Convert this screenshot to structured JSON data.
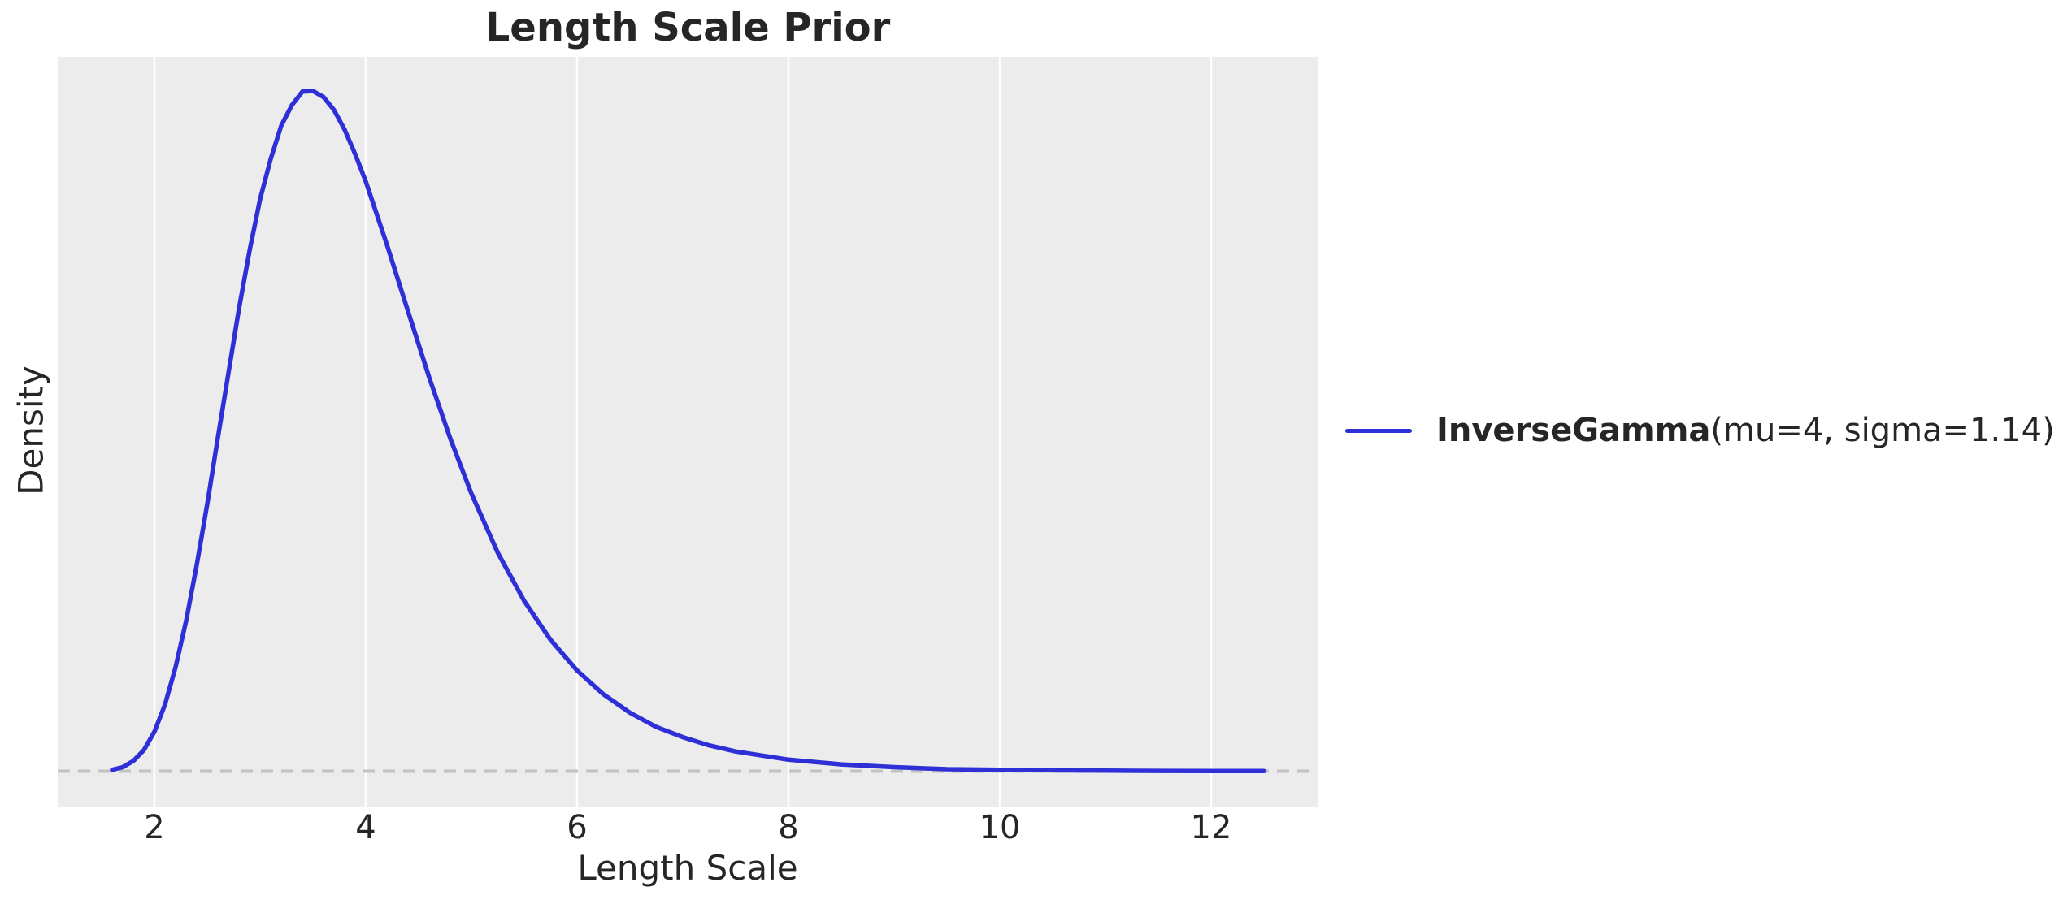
{
  "figure": {
    "title": "Length Scale Prior",
    "xlabel": "Length Scale",
    "ylabel": "Density"
  },
  "legend": {
    "label_bold": "InverseGamma",
    "label_rest": "(mu=4, sigma=1.14)",
    "swatch_color": "#2f2fd7"
  },
  "colors": {
    "plot_bg": "#ececec",
    "grid": "#ffffff",
    "curve": "#2f2fd7",
    "reference_dashed": "#c2c2c2",
    "text": "#262626",
    "figure_bg": "#ffffff"
  },
  "chart_data": {
    "type": "line",
    "title": "Length Scale Prior",
    "xlabel": "Length Scale",
    "ylabel": "Density",
    "xlim": [
      1.08,
      13.0
    ],
    "ylim_relative": [
      -0.052,
      1.05
    ],
    "x_ticks": [
      2,
      4,
      6,
      8,
      10,
      12
    ],
    "y_ticks": [],
    "grid": "vertical gridlines only, white on light gray",
    "legend_position": "center-left outside right edge of axes",
    "reference_line": {
      "y": 0,
      "style": "dashed",
      "color": "#c2c2c2"
    },
    "series": [
      {
        "name": "InverseGamma(mu=4, sigma=1.14)",
        "color": "#2f2fd7",
        "distribution": "InverseGamma",
        "params": {
          "mu": 4,
          "sigma": 1.14
        },
        "peak_x": 3.48,
        "x_range_drawn": [
          1.6,
          12.5
        ],
        "x": [
          1.6,
          1.7,
          1.8,
          1.9,
          2.0,
          2.1,
          2.2,
          2.3,
          2.4,
          2.5,
          2.6,
          2.7,
          2.8,
          2.9,
          3.0,
          3.1,
          3.2,
          3.3,
          3.4,
          3.5,
          3.6,
          3.7,
          3.8,
          3.9,
          4.0,
          4.2,
          4.4,
          4.6,
          4.8,
          5.0,
          5.25,
          5.5,
          5.75,
          6.0,
          6.25,
          6.5,
          6.75,
          7.0,
          7.25,
          7.5,
          8.0,
          8.5,
          9.0,
          9.5,
          10.0,
          10.5,
          11.0,
          11.5,
          12.0,
          12.5
        ],
        "density_relative": [
          0.002,
          0.006,
          0.015,
          0.031,
          0.058,
          0.098,
          0.153,
          0.221,
          0.303,
          0.393,
          0.49,
          0.585,
          0.68,
          0.765,
          0.841,
          0.9,
          0.949,
          0.979,
          0.999,
          1.0,
          0.991,
          0.972,
          0.943,
          0.907,
          0.867,
          0.774,
          0.676,
          0.579,
          0.489,
          0.408,
          0.321,
          0.25,
          0.193,
          0.148,
          0.113,
          0.086,
          0.065,
          0.05,
          0.038,
          0.029,
          0.017,
          0.01,
          0.006,
          0.003,
          0.002,
          0.0013,
          0.0008,
          0.0005,
          0.0003,
          0.0002
        ]
      }
    ]
  }
}
